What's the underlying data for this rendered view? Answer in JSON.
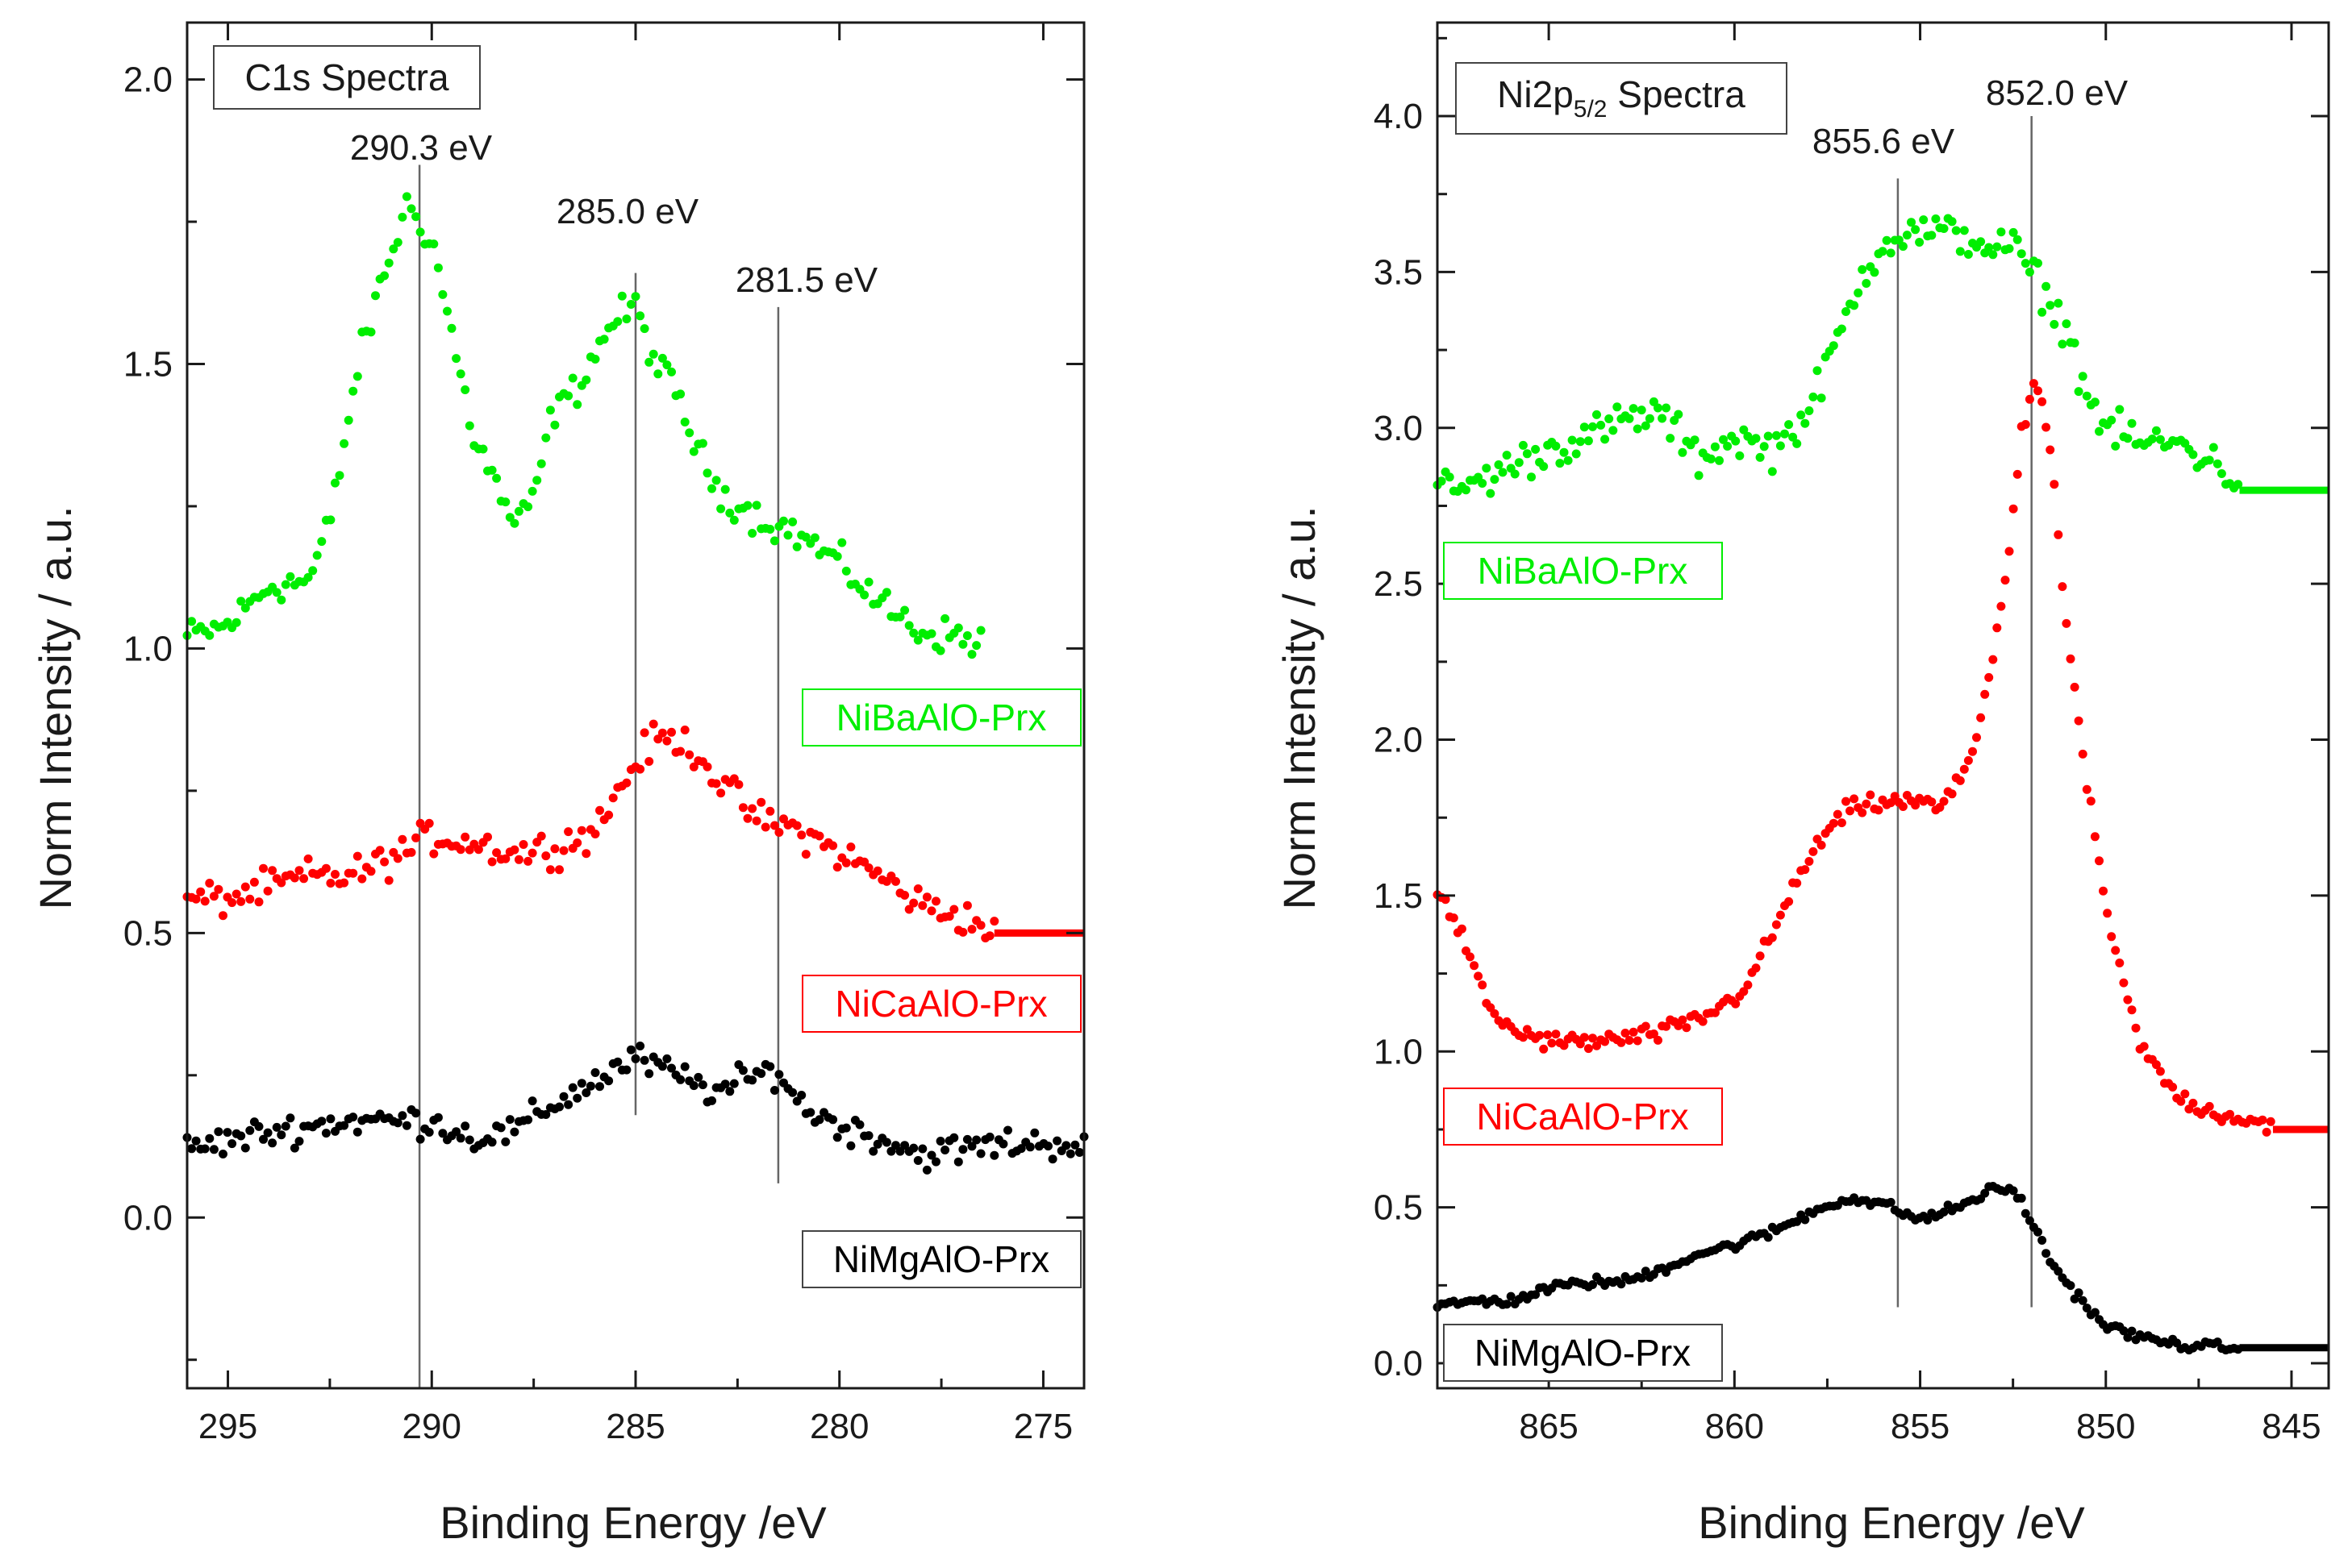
{
  "chart_data": [
    {
      "type": "scatter",
      "title": "C1s Spectra",
      "xlabel": "Binding Energy /eV",
      "ylabel": "Norm Intensity / a.u.",
      "xlim": [
        296,
        274
      ],
      "ylim": [
        -0.3,
        2.1
      ],
      "x_ticks": [
        "295",
        "290",
        "285",
        "280",
        "275"
      ],
      "y_ticks": [
        "0.0",
        "0.5",
        "1.0",
        "1.5",
        "2.0"
      ],
      "reference_lines": [
        {
          "x": 290.3,
          "label": "290.3 eV",
          "y_range": [
            -0.9,
            1.85
          ]
        },
        {
          "x": 285.0,
          "label": "285.0 eV",
          "y_range": [
            0.18,
            1.66
          ]
        },
        {
          "x": 281.5,
          "label": "281.5 eV",
          "y_range": [
            0.06,
            1.6
          ]
        }
      ],
      "series": [
        {
          "name": "NiBaAlO-Prx",
          "color": "#00ee00",
          "baseline": 1.0,
          "end_baseline": null,
          "x_start": 296,
          "x_end": 276.5,
          "profile": [
            [
              296,
              1.02
            ],
            [
              295,
              1.04
            ],
            [
              294,
              1.11
            ],
            [
              293,
              1.12
            ],
            [
              292.5,
              1.22
            ],
            [
              291.8,
              1.5
            ],
            [
              291.2,
              1.65
            ],
            [
              290.6,
              1.78
            ],
            [
              290,
              1.72
            ],
            [
              289.5,
              1.55
            ],
            [
              289,
              1.38
            ],
            [
              288.5,
              1.3
            ],
            [
              288,
              1.22
            ],
            [
              287.6,
              1.24
            ],
            [
              287,
              1.42
            ],
            [
              286.5,
              1.45
            ],
            [
              286,
              1.52
            ],
            [
              285.5,
              1.58
            ],
            [
              285,
              1.6
            ],
            [
              284.5,
              1.5
            ],
            [
              284,
              1.45
            ],
            [
              283.5,
              1.35
            ],
            [
              283,
              1.28
            ],
            [
              282,
              1.23
            ],
            [
              281,
              1.2
            ],
            [
              280,
              1.15
            ],
            [
              279,
              1.08
            ],
            [
              278,
              1.03
            ],
            [
              277,
              1.02
            ],
            [
              276.5,
              1.01
            ]
          ]
        },
        {
          "name": "NiCaAlO-Prx",
          "color": "#ff0000",
          "baseline": 0.5,
          "end_baseline": 0.5,
          "x_start": 296,
          "x_end": 276.2,
          "profile": [
            [
              296,
              0.56
            ],
            [
              295,
              0.56
            ],
            [
              294,
              0.58
            ],
            [
              293,
              0.6
            ],
            [
              292,
              0.6
            ],
            [
              291,
              0.63
            ],
            [
              290,
              0.67
            ],
            [
              289,
              0.66
            ],
            [
              288,
              0.64
            ],
            [
              287,
              0.65
            ],
            [
              286,
              0.68
            ],
            [
              285.5,
              0.74
            ],
            [
              285,
              0.8
            ],
            [
              284.5,
              0.84
            ],
            [
              284,
              0.84
            ],
            [
              283.5,
              0.82
            ],
            [
              283,
              0.77
            ],
            [
              282,
              0.7
            ],
            [
              281,
              0.68
            ],
            [
              280,
              0.64
            ],
            [
              279,
              0.6
            ],
            [
              278,
              0.55
            ],
            [
              277,
              0.53
            ],
            [
              276.2,
              0.5
            ]
          ]
        },
        {
          "name": "NiMgAlO-Prx",
          "color": "#000000",
          "baseline": 0.0,
          "end_baseline": null,
          "x_start": 296,
          "x_end": 274,
          "profile": [
            [
              296,
              0.12
            ],
            [
              294,
              0.15
            ],
            [
              292,
              0.17
            ],
            [
              290,
              0.17
            ],
            [
              289,
              0.14
            ],
            [
              288,
              0.15
            ],
            [
              287,
              0.2
            ],
            [
              286,
              0.24
            ],
            [
              285,
              0.28
            ],
            [
              284,
              0.25
            ],
            [
              283,
              0.22
            ],
            [
              282,
              0.25
            ],
            [
              281.5,
              0.26
            ],
            [
              281,
              0.2
            ],
            [
              280,
              0.16
            ],
            [
              279,
              0.14
            ],
            [
              278,
              0.11
            ],
            [
              277,
              0.12
            ],
            [
              276,
              0.13
            ],
            [
              275,
              0.13
            ],
            [
              274,
              0.13
            ]
          ]
        }
      ]
    },
    {
      "type": "scatter",
      "title": "Ni2p",
      "title_sub": "5/2",
      "title_suffix": " Spectra",
      "xlabel": "Binding Energy /eV",
      "ylabel": "Norm Intensity / a.u.",
      "xlim": [
        868,
        844
      ],
      "ylim": [
        -0.08,
        4.3
      ],
      "x_ticks": [
        "865",
        "860",
        "855",
        "850",
        "845"
      ],
      "y_ticks": [
        "0.0",
        "0.5",
        "1.0",
        "1.5",
        "2.0",
        "2.5",
        "3.0",
        "3.5",
        "4.0"
      ],
      "reference_lines": [
        {
          "x": 855.6,
          "label": "855.6 eV",
          "y_range": [
            0.18,
            3.8
          ]
        },
        {
          "x": 852.0,
          "label": "852.0 eV",
          "y_range": [
            0.18,
            4.0
          ]
        }
      ],
      "series": [
        {
          "name": "NiBaAlO-Prx",
          "color": "#00ee00",
          "baseline": 2.8,
          "end_baseline": 2.8,
          "x_start": 868,
          "x_end": 846.4,
          "profile": [
            [
              868,
              2.8
            ],
            [
              867,
              2.82
            ],
            [
              866,
              2.88
            ],
            [
              865,
              2.93
            ],
            [
              864,
              2.97
            ],
            [
              863,
              3.02
            ],
            [
              862,
              3.05
            ],
            [
              861,
              2.9
            ],
            [
              860,
              2.97
            ],
            [
              859,
              2.93
            ],
            [
              858,
              3.05
            ],
            [
              857.5,
              3.2
            ],
            [
              857,
              3.35
            ],
            [
              856.5,
              3.5
            ],
            [
              856,
              3.6
            ],
            [
              855,
              3.63
            ],
            [
              854,
              3.62
            ],
            [
              853,
              3.58
            ],
            [
              852.5,
              3.58
            ],
            [
              852,
              3.5
            ],
            [
              851.5,
              3.4
            ],
            [
              851,
              3.3
            ],
            [
              850.5,
              3.1
            ],
            [
              850,
              3.0
            ],
            [
              849,
              2.95
            ],
            [
              848,
              2.95
            ],
            [
              847,
              2.88
            ],
            [
              846.4,
              2.82
            ]
          ]
        },
        {
          "name": "NiCaAlO-Prx",
          "color": "#ff0000",
          "baseline": 0.75,
          "end_baseline": 0.75,
          "x_start": 868,
          "x_end": 845.5,
          "profile": [
            [
              868,
              1.5
            ],
            [
              867.5,
              1.42
            ],
            [
              867,
              1.25
            ],
            [
              866.5,
              1.12
            ],
            [
              866,
              1.07
            ],
            [
              865,
              1.03
            ],
            [
              864,
              1.03
            ],
            [
              863,
              1.04
            ],
            [
              862,
              1.06
            ],
            [
              861,
              1.1
            ],
            [
              860,
              1.17
            ],
            [
              859.5,
              1.25
            ],
            [
              859,
              1.37
            ],
            [
              858.5,
              1.5
            ],
            [
              858,
              1.62
            ],
            [
              857.5,
              1.7
            ],
            [
              857,
              1.77
            ],
            [
              856,
              1.8
            ],
            [
              855,
              1.8
            ],
            [
              854.5,
              1.78
            ],
            [
              854,
              1.85
            ],
            [
              853.5,
              2.0
            ],
            [
              853,
              2.3
            ],
            [
              852.6,
              2.6
            ],
            [
              852.3,
              2.95
            ],
            [
              852,
              3.12
            ],
            [
              851.7,
              3.1
            ],
            [
              851.4,
              2.8
            ],
            [
              851,
              2.3
            ],
            [
              850.5,
              1.85
            ],
            [
              850,
              1.45
            ],
            [
              849.5,
              1.2
            ],
            [
              849,
              1.0
            ],
            [
              848.5,
              0.92
            ],
            [
              848,
              0.85
            ],
            [
              847,
              0.8
            ],
            [
              846,
              0.78
            ],
            [
              845.5,
              0.76
            ]
          ]
        },
        {
          "name": "NiMgAlO-Prx",
          "color": "#000000",
          "baseline": 0.05,
          "end_baseline": 0.05,
          "x_start": 868,
          "x_end": 846.4,
          "profile": [
            [
              868,
              0.18
            ],
            [
              867,
              0.2
            ],
            [
              866,
              0.2
            ],
            [
              865,
              0.24
            ],
            [
              864,
              0.26
            ],
            [
              863,
              0.26
            ],
            [
              862,
              0.3
            ],
            [
              861,
              0.35
            ],
            [
              860,
              0.38
            ],
            [
              859,
              0.42
            ],
            [
              858,
              0.48
            ],
            [
              857,
              0.53
            ],
            [
              856,
              0.51
            ],
            [
              855,
              0.46
            ],
            [
              854,
              0.5
            ],
            [
              853,
              0.56
            ],
            [
              852.4,
              0.55
            ],
            [
              852,
              0.45
            ],
            [
              851.5,
              0.33
            ],
            [
              851,
              0.25
            ],
            [
              850.5,
              0.18
            ],
            [
              850,
              0.12
            ],
            [
              849,
              0.08
            ],
            [
              848,
              0.06
            ],
            [
              847,
              0.05
            ],
            [
              846.4,
              0.05
            ]
          ]
        }
      ]
    }
  ]
}
